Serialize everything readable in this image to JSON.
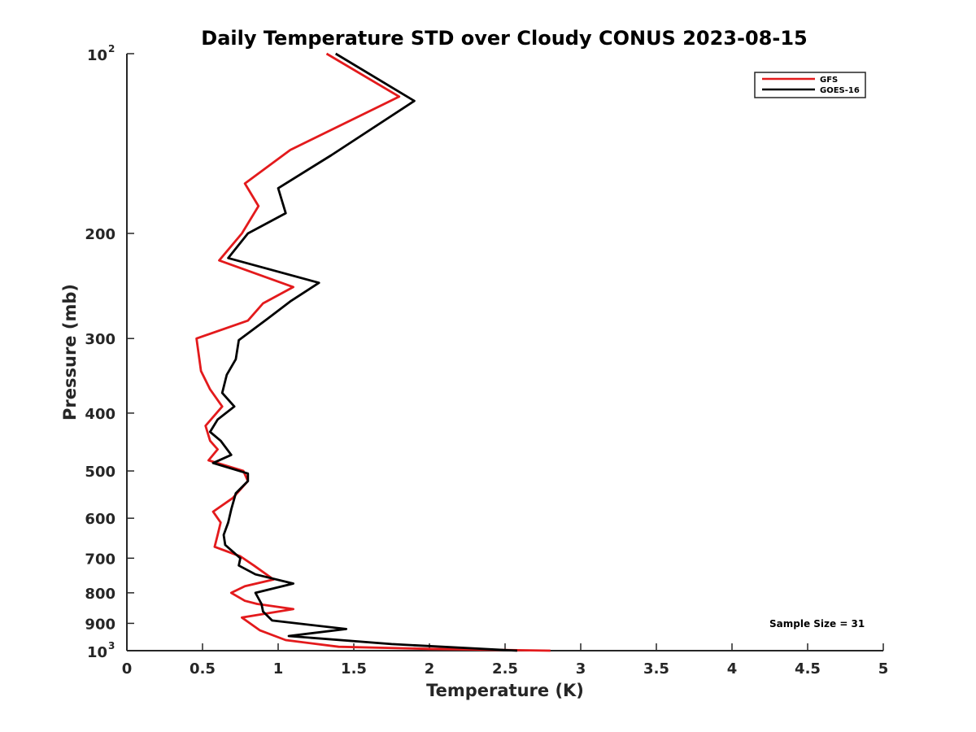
{
  "chart_data": {
    "type": "line",
    "title": "Daily Temperature STD over Cloudy CONUS 2023-08-15",
    "xlabel": "Temperature (K)",
    "ylabel": "Pressure (mb)",
    "xlim": [
      0,
      5
    ],
    "ylim": [
      100,
      1000
    ],
    "y_scale": "log",
    "y_reversed": true,
    "grid": false,
    "legend_position": "top-right",
    "x_ticks": [
      "0",
      "0.5",
      "1",
      "1.5",
      "2",
      "2.5",
      "3",
      "3.5",
      "4",
      "4.5",
      "5"
    ],
    "x_tick_values": [
      0,
      0.5,
      1,
      1.5,
      2,
      2.5,
      3,
      3.5,
      4,
      4.5,
      5
    ],
    "y_ticks": [
      {
        "value": 100,
        "base": "10",
        "exp": "2",
        "label": ""
      },
      {
        "value": 200,
        "label": "200"
      },
      {
        "value": 300,
        "label": "300"
      },
      {
        "value": 400,
        "label": "400"
      },
      {
        "value": 500,
        "label": "500"
      },
      {
        "value": 600,
        "label": "600"
      },
      {
        "value": 700,
        "label": "700"
      },
      {
        "value": 800,
        "label": "800"
      },
      {
        "value": 900,
        "label": "900"
      },
      {
        "value": 1000,
        "base": "10",
        "exp": "3",
        "label": ""
      }
    ],
    "annotation": "Sample Size = 31",
    "series": [
      {
        "name": "GFS",
        "color": "#e31a1c",
        "points": [
          [
            1.32,
            100
          ],
          [
            1.8,
            118
          ],
          [
            1.08,
            145
          ],
          [
            0.78,
            165
          ],
          [
            0.87,
            180
          ],
          [
            0.76,
            200
          ],
          [
            0.61,
            222
          ],
          [
            1.1,
            246
          ],
          [
            0.9,
            262
          ],
          [
            0.8,
            280
          ],
          [
            0.46,
            300
          ],
          [
            0.49,
            340
          ],
          [
            0.55,
            365
          ],
          [
            0.63,
            390
          ],
          [
            0.52,
            420
          ],
          [
            0.55,
            445
          ],
          [
            0.6,
            460
          ],
          [
            0.54,
            480
          ],
          [
            0.77,
            500
          ],
          [
            0.8,
            520
          ],
          [
            0.7,
            555
          ],
          [
            0.57,
            585
          ],
          [
            0.62,
            610
          ],
          [
            0.6,
            640
          ],
          [
            0.58,
            670
          ],
          [
            0.75,
            695
          ],
          [
            0.84,
            720
          ],
          [
            0.97,
            760
          ],
          [
            0.78,
            780
          ],
          [
            0.69,
            800
          ],
          [
            0.78,
            825
          ],
          [
            0.86,
            835
          ],
          [
            1.1,
            852
          ],
          [
            0.76,
            880
          ],
          [
            0.88,
            925
          ],
          [
            1.05,
            960
          ],
          [
            1.4,
            985
          ],
          [
            2.0,
            993
          ],
          [
            2.8,
            1000
          ]
        ]
      },
      {
        "name": "GOES-16",
        "color": "#000000",
        "points": [
          [
            1.38,
            100
          ],
          [
            1.9,
            120
          ],
          [
            1.35,
            148
          ],
          [
            1.0,
            168
          ],
          [
            1.05,
            185
          ],
          [
            0.8,
            200
          ],
          [
            0.67,
            220
          ],
          [
            1.27,
            242
          ],
          [
            1.08,
            260
          ],
          [
            0.93,
            278
          ],
          [
            0.74,
            302
          ],
          [
            0.72,
            325
          ],
          [
            0.66,
            345
          ],
          [
            0.63,
            370
          ],
          [
            0.71,
            390
          ],
          [
            0.6,
            410
          ],
          [
            0.55,
            430
          ],
          [
            0.62,
            445
          ],
          [
            0.69,
            470
          ],
          [
            0.57,
            485
          ],
          [
            0.8,
            505
          ],
          [
            0.8,
            520
          ],
          [
            0.72,
            545
          ],
          [
            0.69,
            580
          ],
          [
            0.67,
            610
          ],
          [
            0.64,
            640
          ],
          [
            0.65,
            665
          ],
          [
            0.75,
            700
          ],
          [
            0.74,
            720
          ],
          [
            0.85,
            745
          ],
          [
            1.1,
            772
          ],
          [
            0.85,
            800
          ],
          [
            0.89,
            835
          ],
          [
            0.9,
            860
          ],
          [
            0.96,
            890
          ],
          [
            1.45,
            920
          ],
          [
            1.07,
            945
          ],
          [
            1.75,
            975
          ],
          [
            2.58,
            1000
          ]
        ]
      }
    ]
  }
}
